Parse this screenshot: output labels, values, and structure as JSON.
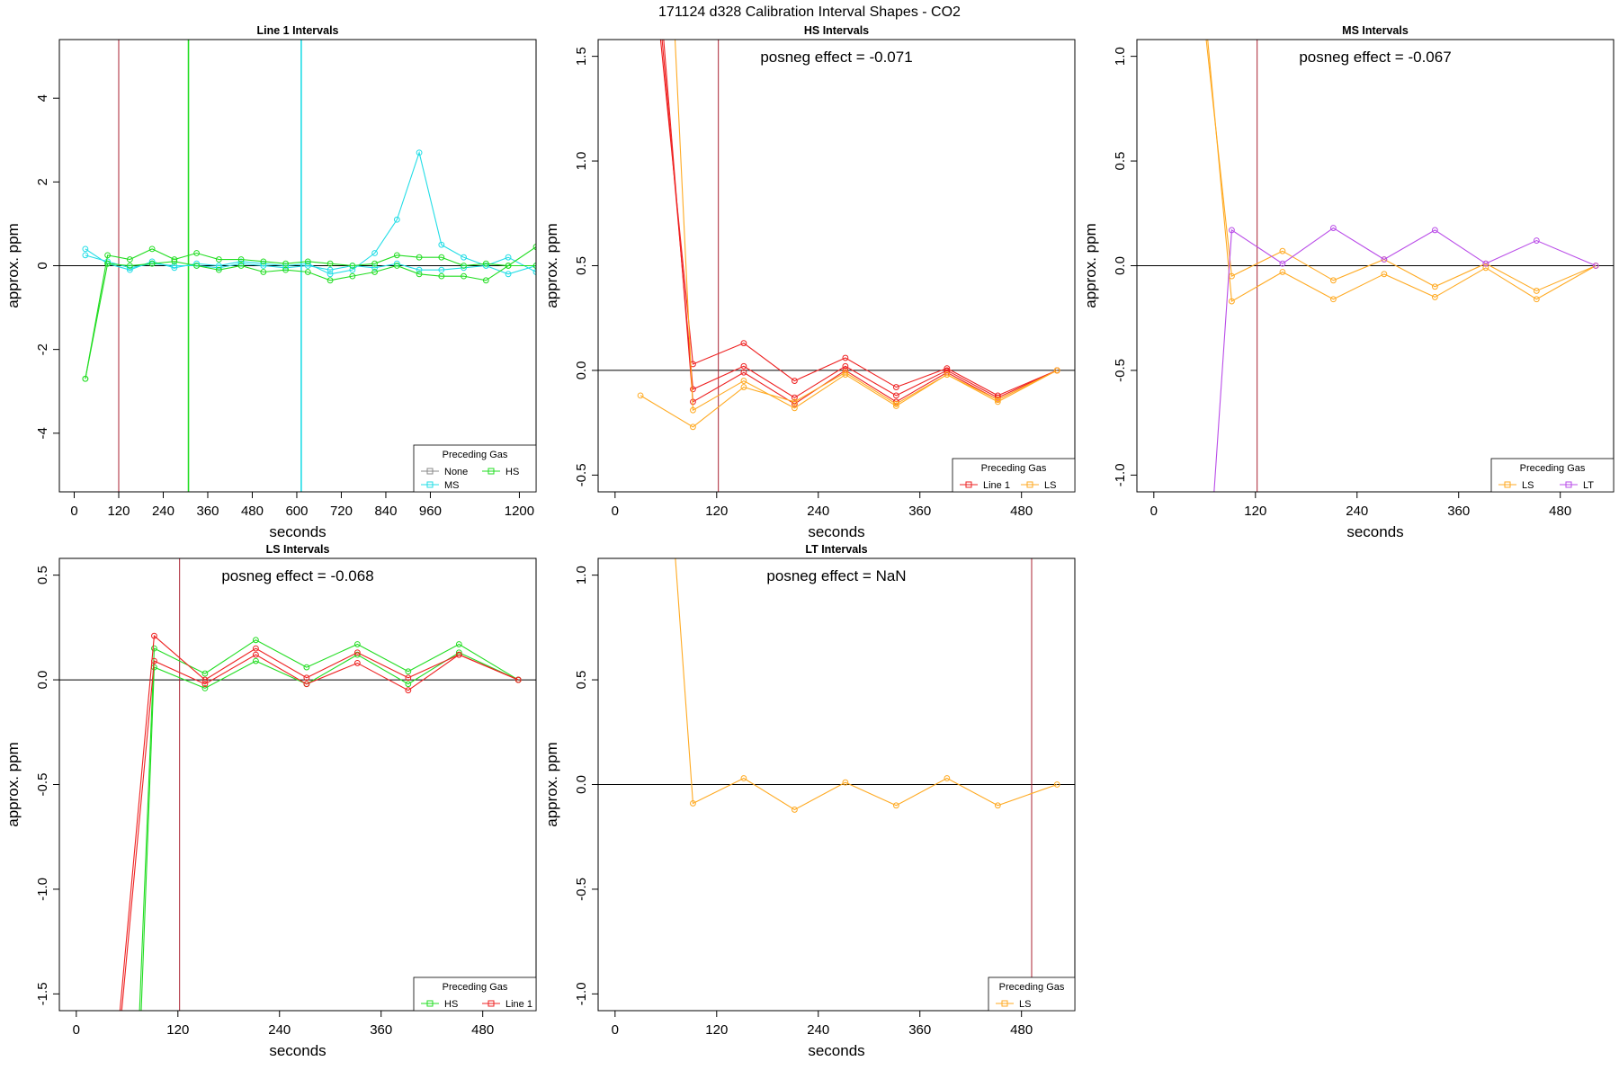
{
  "figure_title": "171124  d328   Calibration Interval Shapes - CO2",
  "colors": {
    "None": "#888888",
    "MS": "#22dde6",
    "HS": "#22dd22",
    "Line 1": "#ee2222",
    "LS": "#ffaa22",
    "LT": "#b94ce8",
    "vline_red": "#aa2233"
  },
  "chart_data": [
    {
      "type": "line",
      "title": "Line 1 Intervals",
      "xlabel": "seconds",
      "ylabel": "approx. ppm",
      "xlim": [
        -40,
        1245
      ],
      "ylim": [
        -5.4,
        5.4
      ],
      "xticks": [
        0,
        120,
        240,
        360,
        480,
        600,
        720,
        840,
        960,
        1200
      ],
      "yticks": [
        -4,
        -2,
        0,
        2,
        4
      ],
      "hline": 0,
      "vlines": [
        {
          "x": 120,
          "color": "vline_red"
        },
        {
          "x": 308,
          "color": "HS"
        },
        {
          "x": 612,
          "color": "MS"
        }
      ],
      "legend": {
        "title": "Preceding Gas",
        "position": "bottom-right",
        "entries": [
          "None",
          "HS",
          "MS"
        ]
      },
      "series": [
        {
          "name": "MS",
          "x": [
            30,
            90,
            150,
            210,
            270,
            330,
            390,
            450,
            510,
            570,
            630,
            690,
            750,
            810,
            870,
            930,
            990,
            1050,
            1110,
            1170,
            1245
          ],
          "y": [
            0.4,
            0.05,
            -0.1,
            0.1,
            -0.05,
            0.05,
            0.0,
            0.1,
            0.05,
            0.0,
            0.05,
            -0.2,
            -0.1,
            0.3,
            1.1,
            2.7,
            0.5,
            0.2,
            0.0,
            0.2,
            -0.15
          ]
        },
        {
          "name": "MS",
          "x": [
            30,
            90,
            150,
            210,
            270,
            330,
            390,
            450,
            510,
            570,
            630,
            690,
            750,
            810,
            870,
            930,
            990,
            1050,
            1110,
            1170,
            1245
          ],
          "y": [
            0.25,
            0.1,
            -0.05,
            0.05,
            0.0,
            0.0,
            -0.05,
            0.05,
            0.0,
            -0.05,
            0.0,
            -0.1,
            0.0,
            -0.05,
            0.05,
            -0.1,
            -0.1,
            -0.05,
            0.0,
            -0.2,
            0.0
          ]
        },
        {
          "name": "HS",
          "x": [
            30,
            90,
            150,
            210,
            270,
            330,
            390,
            450,
            510,
            570,
            630,
            690,
            750,
            810,
            870,
            930,
            990,
            1050,
            1110,
            1170,
            1245
          ],
          "y": [
            -2.7,
            0.25,
            0.15,
            0.4,
            0.15,
            0.3,
            0.15,
            0.15,
            0.1,
            0.05,
            0.1,
            0.05,
            0.0,
            0.05,
            0.25,
            0.2,
            0.2,
            0.0,
            0.05,
            0.0,
            0.45
          ]
        },
        {
          "name": "HS",
          "x": [
            30,
            90,
            150,
            210,
            270,
            330,
            390,
            450,
            510,
            570,
            630,
            690,
            750,
            810,
            870,
            930,
            990,
            1050,
            1110,
            1170,
            1245
          ],
          "y": [
            -2.7,
            0.05,
            0.0,
            0.05,
            0.1,
            0.0,
            -0.1,
            0.0,
            -0.15,
            -0.1,
            -0.15,
            -0.35,
            -0.25,
            -0.15,
            0.0,
            -0.2,
            -0.25,
            -0.25,
            -0.35,
            0.0,
            0.0
          ]
        }
      ]
    },
    {
      "type": "line",
      "title": "HS Intervals",
      "annotation": "posneg effect = -0.071",
      "xlabel": "seconds",
      "ylabel": "approx. ppm",
      "xlim": [
        -20,
        543
      ],
      "ylim": [
        -0.58,
        1.58
      ],
      "xticks": [
        0,
        120,
        240,
        360,
        480
      ],
      "yticks": [
        -0.5,
        0.0,
        0.5,
        1.0,
        1.5
      ],
      "hline": 0,
      "vlines": [
        {
          "x": 122,
          "color": "vline_red"
        }
      ],
      "legend": {
        "title": "Preceding Gas",
        "position": "bottom-right",
        "entries": [
          "Line 1",
          "LS"
        ]
      },
      "series": [
        {
          "name": "Line 1",
          "x": [
            52,
            92,
            152,
            212,
            272,
            332,
            392,
            452,
            522
          ],
          "y": [
            1.65,
            0.03,
            0.13,
            -0.05,
            0.06,
            -0.08,
            0.01,
            -0.12,
            0.0
          ]
        },
        {
          "name": "Line 1",
          "x": [
            54,
            92,
            152,
            212,
            272,
            332,
            392,
            452,
            522
          ],
          "y": [
            1.65,
            -0.09,
            0.02,
            -0.13,
            0.02,
            -0.12,
            0.0,
            -0.13,
            0.0
          ]
        },
        {
          "name": "Line 1",
          "x": [
            56,
            92,
            152,
            212,
            272,
            332,
            392,
            452,
            522
          ],
          "y": [
            1.65,
            -0.15,
            -0.01,
            -0.16,
            0.0,
            -0.15,
            -0.01,
            -0.14,
            0.0
          ]
        },
        {
          "name": "LS",
          "x": [
            70,
            92,
            152,
            212,
            272,
            332,
            392,
            452,
            522
          ],
          "y": [
            1.65,
            -0.19,
            -0.05,
            -0.18,
            -0.02,
            -0.17,
            -0.02,
            -0.14,
            0.0
          ]
        },
        {
          "name": "LS",
          "x": [
            30,
            92,
            152,
            212,
            272,
            332,
            392,
            452,
            522
          ],
          "y": [
            -0.12,
            -0.27,
            -0.08,
            -0.15,
            -0.01,
            -0.16,
            -0.02,
            -0.15,
            0.0
          ]
        }
      ]
    },
    {
      "type": "line",
      "title": "MS Intervals",
      "annotation": "posneg effect = -0.067",
      "xlabel": "seconds",
      "ylabel": "approx. ppm",
      "xlim": [
        -20,
        543
      ],
      "ylim": [
        -1.08,
        1.08
      ],
      "xticks": [
        0,
        120,
        240,
        360,
        480
      ],
      "yticks": [
        -1.0,
        -0.5,
        0.0,
        0.5,
        1.0
      ],
      "hline": 0,
      "vlines": [
        {
          "x": 122,
          "color": "vline_red"
        }
      ],
      "legend": {
        "title": "Preceding Gas",
        "position": "bottom-right",
        "entries": [
          "LS",
          "LT"
        ]
      },
      "series": [
        {
          "name": "LS",
          "x": [
            60,
            92,
            152,
            212,
            272,
            332,
            392,
            452,
            522
          ],
          "y": [
            1.15,
            -0.05,
            0.07,
            -0.07,
            0.03,
            -0.1,
            0.01,
            -0.12,
            0.0
          ]
        },
        {
          "name": "LS",
          "x": [
            62,
            92,
            152,
            212,
            272,
            332,
            392,
            452,
            522
          ],
          "y": [
            1.15,
            -0.17,
            -0.03,
            -0.16,
            -0.04,
            -0.15,
            -0.01,
            -0.16,
            0.0
          ]
        },
        {
          "name": "LT",
          "x": [
            70,
            92,
            152,
            212,
            272,
            332,
            392,
            452,
            522
          ],
          "y": [
            -1.15,
            0.17,
            0.01,
            0.18,
            0.03,
            0.17,
            0.01,
            0.12,
            0.0
          ]
        }
      ]
    },
    {
      "type": "line",
      "title": "LS Intervals",
      "annotation": "posneg effect = -0.068",
      "xlabel": "seconds",
      "ylabel": "approx. ppm",
      "xlim": [
        -20,
        543
      ],
      "ylim": [
        -1.58,
        0.58
      ],
      "xticks": [
        0,
        120,
        240,
        360,
        480
      ],
      "yticks": [
        -1.5,
        -1.0,
        -0.5,
        0.0,
        0.5
      ],
      "hline": 0,
      "vlines": [
        {
          "x": 122,
          "color": "vline_red"
        }
      ],
      "legend": {
        "title": "Preceding Gas",
        "position": "bottom-right",
        "entries": [
          "HS",
          "Line 1"
        ]
      },
      "series": [
        {
          "name": "HS",
          "x": [
            74,
            92,
            152,
            212,
            272,
            332,
            392,
            452,
            522
          ],
          "y": [
            -1.65,
            0.15,
            0.03,
            0.19,
            0.06,
            0.17,
            0.04,
            0.17,
            0.0
          ]
        },
        {
          "name": "HS",
          "x": [
            76,
            92,
            152,
            212,
            272,
            332,
            392,
            452,
            522
          ],
          "y": [
            -1.65,
            0.06,
            -0.04,
            0.09,
            -0.02,
            0.12,
            -0.02,
            0.13,
            0.0
          ]
        },
        {
          "name": "Line 1",
          "x": [
            50,
            92,
            152,
            212,
            272,
            332,
            392,
            452,
            522
          ],
          "y": [
            -1.65,
            0.21,
            0.0,
            0.15,
            0.01,
            0.13,
            0.01,
            0.12,
            0.0
          ]
        },
        {
          "name": "Line 1",
          "x": [
            52,
            92,
            152,
            212,
            272,
            332,
            392,
            452,
            522
          ],
          "y": [
            -1.65,
            0.09,
            -0.02,
            0.12,
            -0.02,
            0.08,
            -0.05,
            0.12,
            0.0
          ]
        }
      ]
    },
    {
      "type": "line",
      "title": "LT Intervals",
      "annotation": "posneg effect = NaN",
      "xlabel": "seconds",
      "ylabel": "approx. ppm",
      "xlim": [
        -20,
        543
      ],
      "ylim": [
        -1.08,
        1.08
      ],
      "xticks": [
        0,
        120,
        240,
        360,
        480
      ],
      "yticks": [
        -1.0,
        -0.5,
        0.0,
        0.5,
        1.0
      ],
      "hline": 0,
      "vlines": [
        {
          "x": 492,
          "color": "vline_red"
        }
      ],
      "legend": {
        "title": "Preceding Gas",
        "position": "bottom-right",
        "entries": [
          "LS"
        ]
      },
      "series": [
        {
          "name": "LS",
          "x": [
            70,
            92,
            152,
            212,
            272,
            332,
            392,
            452,
            522
          ],
          "y": [
            1.15,
            -0.09,
            0.03,
            -0.12,
            0.01,
            -0.1,
            0.03,
            -0.1,
            0.0
          ]
        }
      ]
    }
  ]
}
